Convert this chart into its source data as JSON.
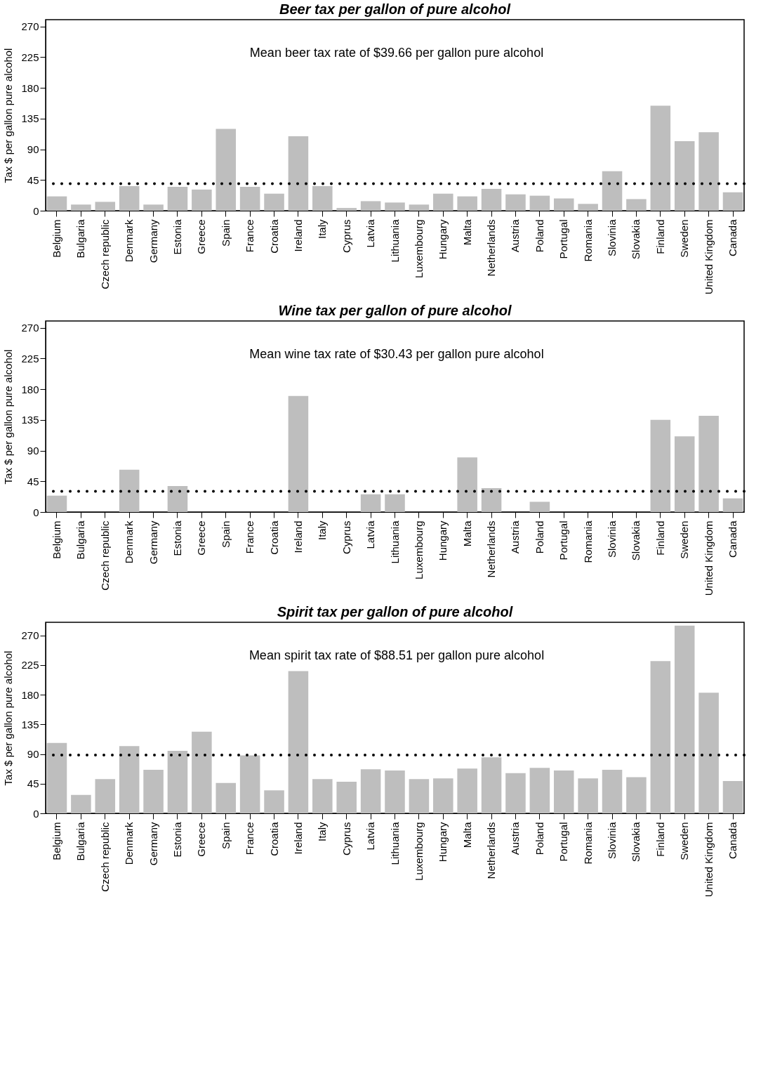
{
  "chart_data": [
    {
      "type": "bar",
      "title": "Beer tax per gallon of pure alcohol",
      "ylabel": "Tax $ per gallon pure alcohol",
      "categories": [
        "Belgium",
        "Bulgaria",
        "Czech republic",
        "Denmark",
        "Germany",
        "Estonia",
        "Greece",
        "Spain",
        "France",
        "Croatia",
        "Ireland",
        "Italy",
        "Cyprus",
        "Latvia",
        "Lithuania",
        "Luxembourg",
        "Hungary",
        "Malta",
        "Netherlands",
        "Austria",
        "Poland",
        "Portugal",
        "Romania",
        "Slovinia",
        "Slovakia",
        "Finland",
        "Sweden",
        "United Kingdom",
        "Canada"
      ],
      "values": [
        21,
        9,
        13,
        36,
        9,
        35,
        31,
        120,
        35,
        25,
        109,
        36,
        4,
        14,
        12,
        9,
        25,
        21,
        32,
        24,
        22,
        18,
        10,
        58,
        17,
        154,
        102,
        115,
        27
      ],
      "color": "#bebebe",
      "ylim": [
        0,
        280
      ],
      "yticks": [
        0,
        45,
        90,
        135,
        180,
        225,
        270
      ],
      "ref_lines": [
        {
          "axis": "y",
          "value": 39.66,
          "color": "#000000",
          "line_style": "dotted"
        }
      ],
      "annotations": [
        "Mean beer tax rate of $39.66 per gallon pure alcohol"
      ]
    },
    {
      "type": "bar",
      "title": "Wine tax per gallon of pure alcohol",
      "ylabel": "Tax $ per gallon pure alcohol",
      "categories": [
        "Belgium",
        "Bulgaria",
        "Czech republic",
        "Denmark",
        "Germany",
        "Estonia",
        "Greece",
        "Spain",
        "France",
        "Croatia",
        "Ireland",
        "Italy",
        "Cyprus",
        "Latvia",
        "Lithuania",
        "Luxembourg",
        "Hungary",
        "Malta",
        "Netherlands",
        "Austria",
        "Poland",
        "Portugal",
        "Romania",
        "Slovinia",
        "Slovakia",
        "Finland",
        "Sweden",
        "United Kingdom",
        "Canada"
      ],
      "values": [
        24,
        0,
        0,
        62,
        0,
        38,
        0,
        0,
        0,
        0,
        170,
        0,
        0,
        26,
        26,
        0,
        0,
        80,
        35,
        0,
        15,
        0,
        0,
        0,
        0,
        135,
        111,
        141,
        20
      ],
      "color": "#bebebe",
      "ylim": [
        0,
        280
      ],
      "yticks": [
        0,
        45,
        90,
        135,
        180,
        225,
        270
      ],
      "ref_lines": [
        {
          "axis": "y",
          "value": 30.43,
          "color": "#000000",
          "line_style": "dotted"
        }
      ],
      "annotations": [
        "Mean wine tax rate of $30.43 per gallon pure alcohol"
      ]
    },
    {
      "type": "bar",
      "title": "Spirit tax per gallon of pure alcohol",
      "ylabel": "Tax $ per gallon pure alcohol",
      "categories": [
        "Belgium",
        "Bulgaria",
        "Czech republic",
        "Denmark",
        "Germany",
        "Estonia",
        "Greece",
        "Spain",
        "France",
        "Croatia",
        "Ireland",
        "Italy",
        "Cyprus",
        "Latvia",
        "Lithuania",
        "Luxembourg",
        "Hungary",
        "Malta",
        "Netherlands",
        "Austria",
        "Poland",
        "Portugal",
        "Romania",
        "Slovinia",
        "Slovakia",
        "Finland",
        "Sweden",
        "United Kingdom",
        "Canada"
      ],
      "values": [
        107,
        28,
        52,
        102,
        66,
        95,
        124,
        46,
        88,
        35,
        216,
        52,
        48,
        67,
        65,
        52,
        53,
        68,
        85,
        61,
        69,
        65,
        53,
        66,
        55,
        231,
        285,
        183,
        49
      ],
      "color": "#bebebe",
      "ylim": [
        0,
        290
      ],
      "yticks": [
        0,
        45,
        90,
        135,
        180,
        225,
        270
      ],
      "ref_lines": [
        {
          "axis": "y",
          "value": 88.51,
          "color": "#000000",
          "line_style": "dotted"
        }
      ],
      "annotations": [
        "Mean spirit tax rate of $88.51 per gallon pure alcohol"
      ]
    }
  ]
}
